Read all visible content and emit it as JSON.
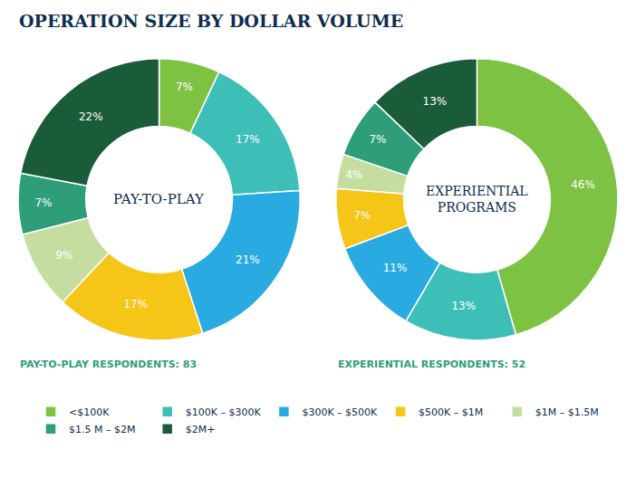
{
  "chart_data": [
    {
      "type": "pie",
      "title": "OPERATION SIZE BY DOLLAR VOLUME",
      "subtitle": "PAY-TO-PLAY RESPONDENTS: 83",
      "annotations": [
        "PAY-TO-PLAY"
      ],
      "categories": [
        "<$100K",
        "$100K – $300K",
        "$300K – $500K",
        "$500K – $1M",
        "$1M – $1.5M",
        "$1.5 M – $2M",
        "$2M+"
      ],
      "values": [
        7,
        17,
        21,
        17,
        9,
        7,
        22
      ],
      "value_labels": [
        "7%",
        "17%",
        "21%",
        "17%",
        "9%",
        "7%",
        "22%"
      ],
      "colors": [
        "#7dc242",
        "#3dbfb8",
        "#29abe2",
        "#f5c518",
        "#c5dea0",
        "#2e9e7a",
        "#1a5c3a"
      ],
      "data_labels": true,
      "legend": "bottom"
    },
    {
      "type": "pie",
      "subtitle": "EXPERIENTIAL RESPONDENTS: 52",
      "annotations": [
        "EXPERIENTIAL",
        "PROGRAMS"
      ],
      "categories": [
        "<$100K",
        "$100K – $300K",
        "$300K – $500K",
        "$500K – $1M",
        "$1M – $1.5M",
        "$1.5 M – $2M",
        "$2M+"
      ],
      "values": [
        46,
        13,
        11,
        7,
        4,
        7,
        13
      ],
      "value_labels": [
        "46%",
        "13%",
        "11%",
        "7%",
        "4%",
        "7%",
        "13%"
      ],
      "colors": [
        "#7dc242",
        "#3dbfb8",
        "#29abe2",
        "#f5c518",
        "#c5dea0",
        "#2e9e7a",
        "#1a5c3a"
      ],
      "data_labels": true,
      "legend": "bottom"
    }
  ]
}
